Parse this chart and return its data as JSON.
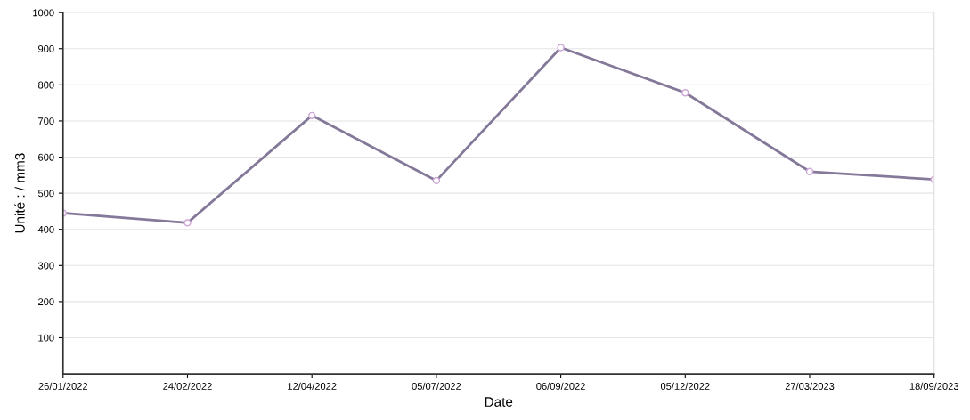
{
  "chart_data": {
    "type": "line",
    "xlabel": "Date",
    "ylabel": "Unité : / mm3",
    "categories": [
      "26/01/2022",
      "24/02/2022",
      "12/04/2022",
      "05/07/2022",
      "06/09/2022",
      "05/12/2022",
      "27/03/2023",
      "18/09/2023"
    ],
    "series": [
      {
        "color": "#85799a",
        "values": [
          445,
          418,
          715,
          535,
          903,
          778,
          560,
          538
        ]
      }
    ],
    "ylim": [
      0,
      1000
    ],
    "yticks": [
      100,
      200,
      300,
      400,
      500,
      600,
      700,
      800,
      900,
      1000
    ],
    "grid": "y",
    "marker": "circle",
    "line_style": "solid"
  }
}
